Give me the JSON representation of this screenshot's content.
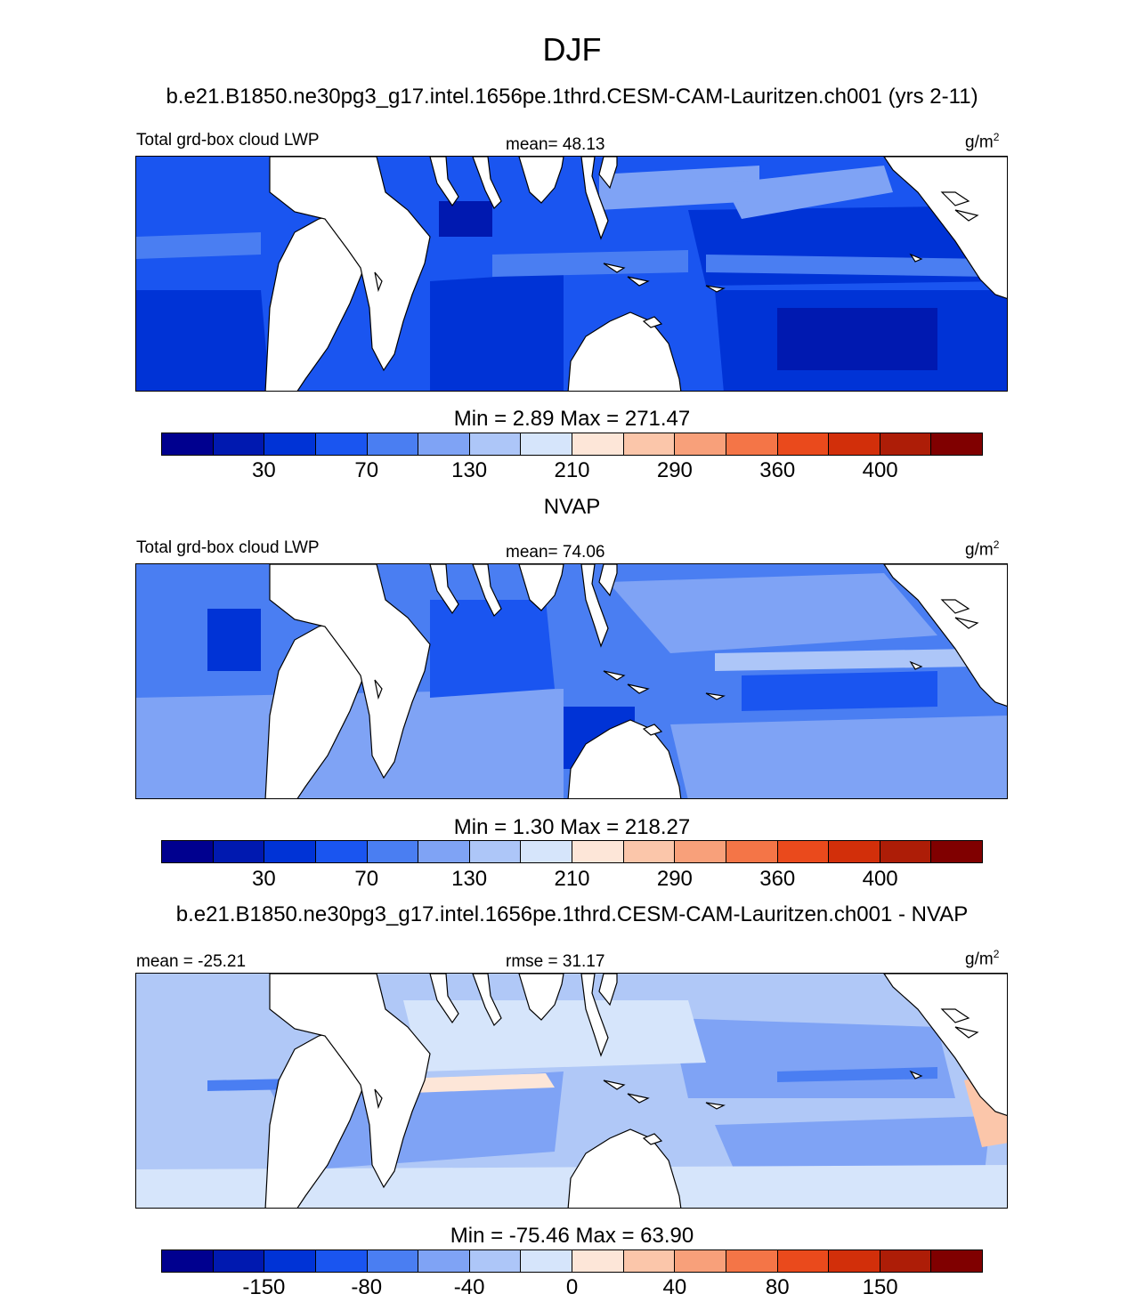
{
  "title": "DJF",
  "subtitle": "b.e21.B1850.ne30pg3_g17.intel.1656pe.1thrd.CESM-CAM-Lauritzen.ch001 (yrs 2-11)",
  "panels": [
    {
      "left_label": "Total grd-box cloud LWP",
      "center_label": "mean=  48.13",
      "units_base": "g/m",
      "units_exp": "2",
      "minmax": "Min =   2.89 Max = 271.47",
      "palette": "model"
    },
    {
      "heading": "NVAP",
      "left_label": "Total grd-box cloud LWP",
      "center_label": "mean=  74.06",
      "units_base": "g/m",
      "units_exp": "2",
      "minmax": "Min =   1.30 Max = 218.27",
      "palette": "obs"
    },
    {
      "heading": "b.e21.B1850.ne30pg3_g17.intel.1656pe.1thrd.CESM-CAM-Lauritzen.ch001 - NVAP",
      "left_label": "mean = -25.21",
      "center_label": "rmse =  31.17",
      "units_base": "g/m",
      "units_exp": "2",
      "minmax": "Min = -75.46 Max =  63.90",
      "palette": "diff"
    }
  ],
  "colorbar_colors": [
    "#00008f",
    "#0019b0",
    "#0033d6",
    "#1a55f0",
    "#4a7ef2",
    "#7fa3f5",
    "#adc6f8",
    "#d6e5fb",
    "#fde6d8",
    "#fbc6aa",
    "#f8a07a",
    "#f47547",
    "#ea4a1c",
    "#d22f0a",
    "#ad1d07",
    "#800000"
  ],
  "colorbar_labels_abs": [
    "30",
    "70",
    "130",
    "210",
    "290",
    "360",
    "400"
  ],
  "colorbar_labels_diff": [
    "-150",
    "-80",
    "-40",
    "0",
    "40",
    "80",
    "150"
  ]
}
